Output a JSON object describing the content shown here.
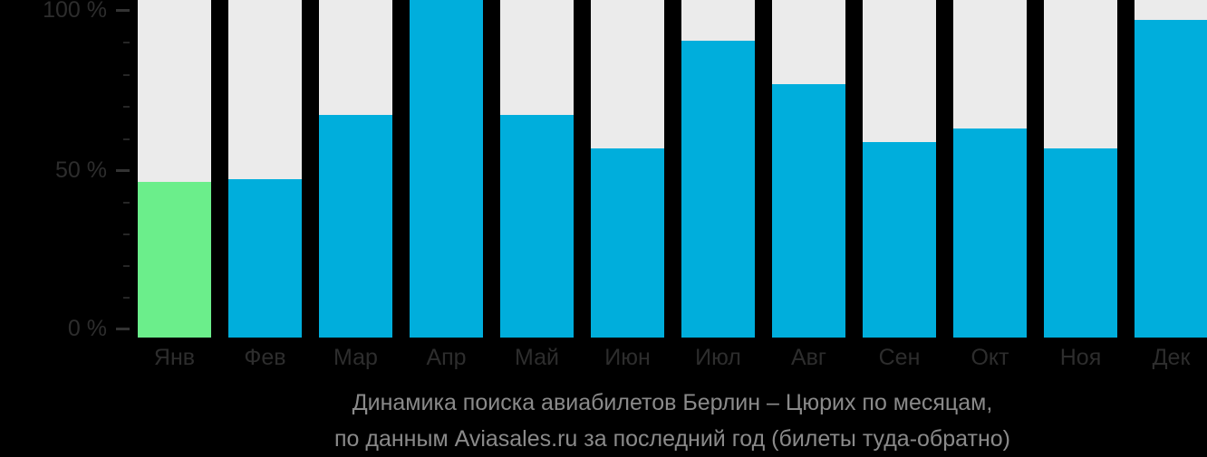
{
  "chart_data": {
    "type": "bar",
    "title": "Динамика поиска авиабилетов Берлин – Цюрих по месяцам,",
    "subtitle": "по данным Aviasales.ru за последний год (билеты туда-обратно)",
    "categories": [
      "Янв",
      "Фев",
      "Мар",
      "Апр",
      "Май",
      "Июн",
      "Июл",
      "Авг",
      "Сен",
      "Окт",
      "Ноя",
      "Дек"
    ],
    "values": [
      46,
      47,
      66,
      100,
      66,
      56,
      88,
      75,
      58,
      62,
      56,
      94
    ],
    "unit": "%",
    "highlight": {
      "index": 0,
      "category": "Янв"
    },
    "ylim": [
      0,
      100
    ],
    "y_ticks": [
      {
        "label": "100 %",
        "percent": 100
      },
      {
        "label": "50 %",
        "percent": 50
      },
      {
        "label": "0 %",
        "percent": 0
      }
    ],
    "y_minor_ticks_between_majors": 4,
    "grid": false,
    "legend": "none",
    "colors": {
      "background": "#000000",
      "bar": "#00AEDC",
      "highlight_bar": "#6BEE8B",
      "track": "#EBEBEB",
      "axis_label": "#2d2d2d",
      "major_tick": "#333333",
      "minor_tick": "#262626",
      "caption_text": "#8a8a8a"
    }
  }
}
